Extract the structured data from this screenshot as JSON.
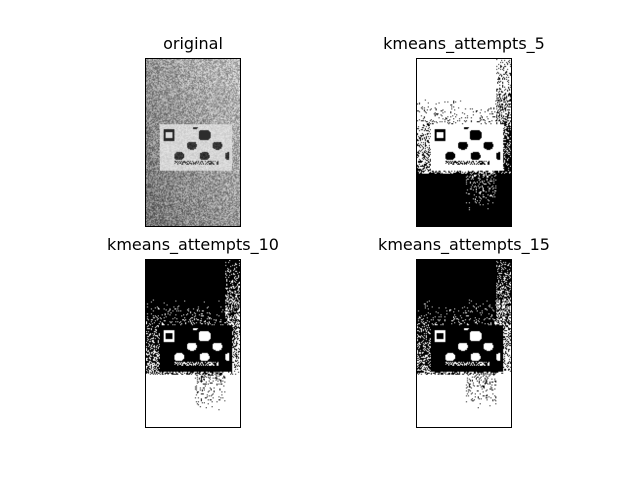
{
  "chart_data": [
    {
      "type": "image",
      "title": "original",
      "content": "grayscale photo of a card lying on a fabric surface",
      "colors": {
        "background": "#ffffff",
        "border": "#000000",
        "text": "#000000"
      }
    },
    {
      "type": "image",
      "title": "kmeans_attempts_5",
      "content": "binary black and white segmentation of the card photo"
    },
    {
      "type": "image",
      "title": "kmeans_attempts_10",
      "content": "binary black and white segmentation of the card photo, inverted"
    },
    {
      "type": "image",
      "title": "kmeans_attempts_15",
      "content": "binary black and white segmentation of the card photo"
    }
  ]
}
